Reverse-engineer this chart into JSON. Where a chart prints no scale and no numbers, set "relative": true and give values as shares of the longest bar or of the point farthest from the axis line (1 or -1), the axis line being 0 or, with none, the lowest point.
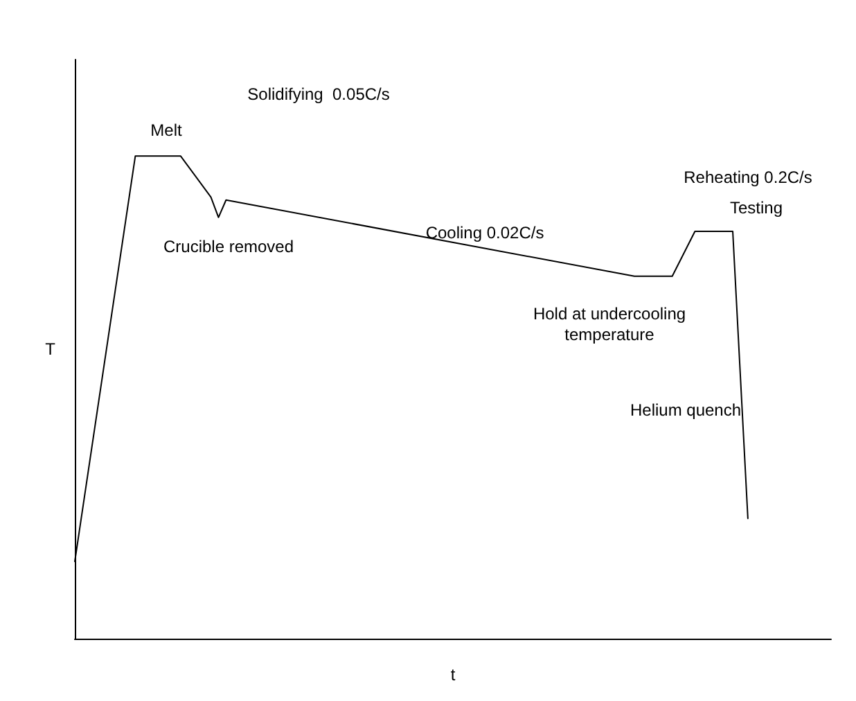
{
  "chart_data": {
    "type": "line",
    "relative": true,
    "xlabel": "t",
    "ylabel": "T",
    "grid": false,
    "marker": "none",
    "line_style": "solid",
    "categories": [
      null,
      null,
      null,
      null,
      null,
      null,
      null,
      null,
      null,
      null,
      null,
      null,
      null,
      null,
      null,
      null,
      null,
      null,
      null,
      null,
      null,
      null,
      null,
      null,
      null,
      null,
      null,
      null,
      null,
      null,
      null,
      null,
      null,
      null,
      null,
      null,
      null,
      null,
      null,
      null,
      null,
      null,
      null,
      null,
      null,
      null,
      null,
      null,
      null,
      null,
      null,
      null,
      null,
      null,
      null,
      null,
      null,
      null,
      null,
      null,
      null,
      null,
      null,
      null,
      null,
      null,
      null,
      null,
      null,
      null,
      null,
      null,
      null,
      null,
      null,
      null,
      null,
      null,
      null,
      null,
      null,
      null,
      null,
      null,
      null,
      null,
      null,
      null,
      null,
      null,
      null,
      null,
      null,
      null,
      null,
      null,
      null,
      null,
      null,
      null,
      null
    ],
    "series": [
      {
        "color": "#000000",
        "values": [
          0.16,
          null,
          null,
          null,
          null,
          null,
          null,
          null,
          1,
          null,
          null,
          null,
          null,
          null,
          1,
          null,
          null,
          null,
          0.915,
          0.873,
          0.909,
          null,
          null,
          null,
          null,
          null,
          null,
          null,
          null,
          null,
          null,
          null,
          null,
          null,
          null,
          null,
          null,
          null,
          null,
          null,
          null,
          null,
          null,
          null,
          null,
          null,
          null,
          null,
          null,
          null,
          null,
          null,
          null,
          null,
          null,
          null,
          null,
          null,
          null,
          null,
          null,
          null,
          null,
          null,
          null,
          null,
          null,
          null,
          null,
          null,
          null,
          null,
          null,
          null,
          0.751,
          null,
          null,
          null,
          null,
          0.751,
          null,
          null,
          0.844,
          null,
          null,
          null,
          null,
          0.844,
          null,
          0.249,
          null,
          null,
          null,
          null,
          null,
          null,
          null,
          null,
          null,
          null,
          null
        ]
      }
    ],
    "annotations": [
      "Melt",
      "Solidifying  0.05C/s",
      "Crucible removed",
      "Cooling 0.02C/s",
      "Reheating 0.2C/s",
      "Testing",
      "Hold at undercooling\ntemperature",
      "Helium quench"
    ]
  }
}
